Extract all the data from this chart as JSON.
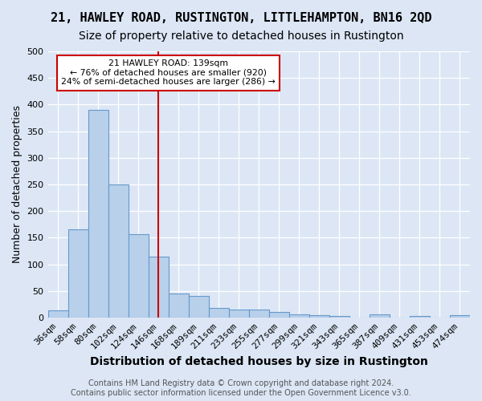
{
  "title": "21, HAWLEY ROAD, RUSTINGTON, LITTLEHAMPTON, BN16 2QD",
  "subtitle": "Size of property relative to detached houses in Rustington",
  "xlabel": "Distribution of detached houses by size in Rustington",
  "ylabel": "Number of detached properties",
  "categories": [
    "36sqm",
    "58sqm",
    "80sqm",
    "102sqm",
    "124sqm",
    "146sqm",
    "168sqm",
    "189sqm",
    "211sqm",
    "233sqm",
    "255sqm",
    "277sqm",
    "299sqm",
    "321sqm",
    "343sqm",
    "365sqm",
    "387sqm",
    "409sqm",
    "431sqm",
    "453sqm",
    "474sqm"
  ],
  "values": [
    13,
    165,
    390,
    250,
    157,
    115,
    45,
    40,
    18,
    15,
    15,
    10,
    6,
    5,
    3,
    0,
    6,
    0,
    3,
    0,
    4
  ],
  "bar_color": "#b8d0ea",
  "bar_edge_color": "#6699cc",
  "vline_color": "#cc0000",
  "vline_index": 5,
  "annotation_line1": "21 HAWLEY ROAD: 139sqm",
  "annotation_line2": "← 76% of detached houses are smaller (920)",
  "annotation_line3": "24% of semi-detached houses are larger (286) →",
  "ylim": [
    0,
    500
  ],
  "yticks": [
    0,
    50,
    100,
    150,
    200,
    250,
    300,
    350,
    400,
    450,
    500
  ],
  "background_color": "#dce6f5",
  "grid_color": "#ffffff",
  "title_fontsize": 11,
  "subtitle_fontsize": 10,
  "xlabel_fontsize": 10,
  "ylabel_fontsize": 9,
  "tick_fontsize": 8,
  "footer_fontsize": 7,
  "footer": "Contains HM Land Registry data © Crown copyright and database right 2024.\nContains public sector information licensed under the Open Government Licence v3.0."
}
